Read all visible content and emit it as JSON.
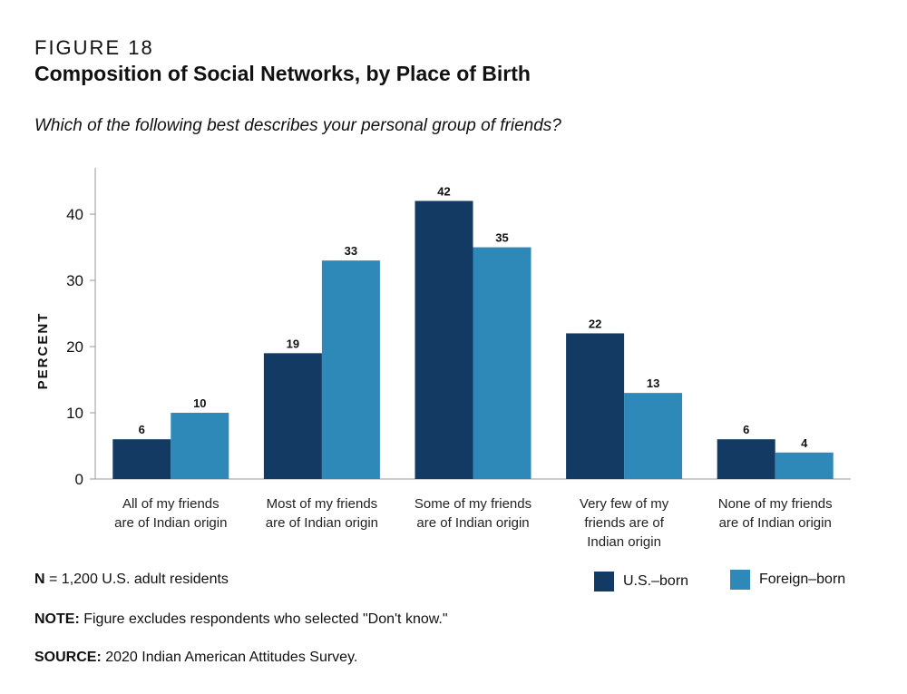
{
  "figure_label": "FIGURE 18",
  "title": "Composition of Social Networks, by Place of Birth",
  "question": "Which of the following best describes your personal group of friends?",
  "notes": {
    "n_label": "N",
    "n_text": " = 1,200 U.S. adult residents",
    "note_label": "NOTE:",
    "note_text": " Figure excludes respondents who selected \"Don't know.\"",
    "source_label": "SOURCE:",
    "source_text": " 2020 Indian American Attitudes Survey."
  },
  "chart_data": {
    "type": "bar",
    "ylabel": "PERCENT",
    "ylim": [
      0,
      47
    ],
    "yticks": [
      0,
      10,
      20,
      30,
      40
    ],
    "grid": false,
    "legend_placement": "bottom-right",
    "categories": [
      [
        "All of my friends",
        "are of Indian origin"
      ],
      [
        "Most of my friends",
        "are of Indian origin"
      ],
      [
        "Some of my friends",
        "are of Indian origin"
      ],
      [
        "Very few of my",
        "friends are of",
        "Indian origin"
      ],
      [
        "None of my friends",
        "are of Indian origin"
      ]
    ],
    "series": [
      {
        "name": "U.S.–born",
        "color": "#123a63",
        "values": [
          6,
          19,
          42,
          22,
          6
        ]
      },
      {
        "name": "Foreign–born",
        "color": "#2e88b8",
        "values": [
          10,
          33,
          35,
          13,
          4
        ]
      }
    ]
  }
}
